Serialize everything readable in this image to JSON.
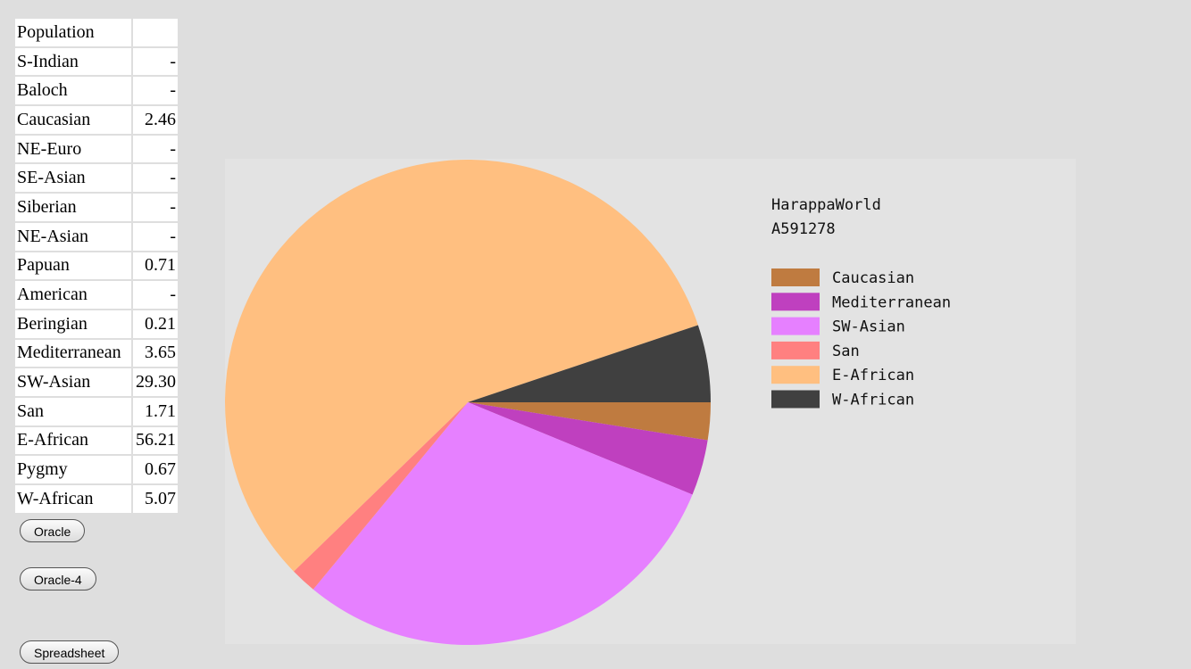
{
  "table": {
    "header": "Population",
    "rows": [
      [
        "S-Indian",
        "-"
      ],
      [
        "Baloch",
        "-"
      ],
      [
        "Caucasian",
        "2.46"
      ],
      [
        "NE-Euro",
        "-"
      ],
      [
        "SE-Asian",
        "-"
      ],
      [
        "Siberian",
        "-"
      ],
      [
        "NE-Asian",
        "-"
      ],
      [
        "Papuan",
        "0.71"
      ],
      [
        "American",
        "-"
      ],
      [
        "Beringian",
        "0.21"
      ],
      [
        "Mediterranean",
        "3.65"
      ],
      [
        "SW-Asian",
        "29.30"
      ],
      [
        "San",
        "1.71"
      ],
      [
        "E-African",
        "56.21"
      ],
      [
        "Pygmy",
        "0.67"
      ],
      [
        "W-African",
        "5.07"
      ]
    ]
  },
  "buttons": [
    "Oracle",
    "Oracle-4",
    "Spreadsheet"
  ],
  "chart_data": {
    "type": "pie",
    "title": "HarappaWorld",
    "subtitle": "A591278",
    "categories": [
      "Caucasian",
      "Mediterranean",
      "SW-Asian",
      "San",
      "E-African",
      "W-African"
    ],
    "values": [
      2.46,
      3.65,
      29.3,
      1.71,
      56.21,
      5.07
    ],
    "colors": [
      "#bf7b40",
      "#bf40bf",
      "#e680ff",
      "#ff8080",
      "#ffbf80",
      "#404040"
    ]
  }
}
